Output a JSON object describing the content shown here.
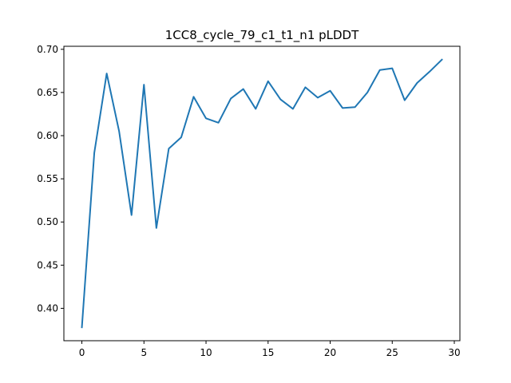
{
  "chart_data": {
    "type": "line",
    "title": "1CC8_cycle_79_c1_t1_n1 pLDDT",
    "xlabel": "",
    "ylabel": "",
    "x": [
      0,
      1,
      2,
      3,
      4,
      5,
      6,
      7,
      8,
      9,
      10,
      11,
      12,
      13,
      14,
      15,
      16,
      17,
      18,
      19,
      20,
      21,
      22,
      23,
      24,
      25,
      26,
      27,
      28,
      29
    ],
    "series": [
      {
        "color": "#1f77b4",
        "values": [
          0.378,
          0.58,
          0.672,
          0.605,
          0.508,
          0.659,
          0.493,
          0.585,
          0.598,
          0.645,
          0.62,
          0.615,
          0.643,
          0.654,
          0.631,
          0.663,
          0.642,
          0.631,
          0.656,
          0.644,
          0.652,
          0.632,
          0.633,
          0.65,
          0.676,
          0.678,
          0.641,
          0.661,
          0.674,
          0.688
        ]
      }
    ],
    "xlim": [
      -1.45,
      30.45
    ],
    "ylim": [
      0.3625,
      0.7035
    ],
    "xticks": [
      0,
      5,
      10,
      15,
      20,
      25,
      30
    ],
    "xtick_labels": [
      "0",
      "5",
      "10",
      "15",
      "20",
      "25",
      "30"
    ],
    "yticks": [
      0.4,
      0.45,
      0.5,
      0.55,
      0.6,
      0.65,
      0.7
    ],
    "ytick_labels": [
      "0.40",
      "0.45",
      "0.50",
      "0.55",
      "0.60",
      "0.65",
      "0.70"
    ],
    "grid": false,
    "legend": "none"
  }
}
